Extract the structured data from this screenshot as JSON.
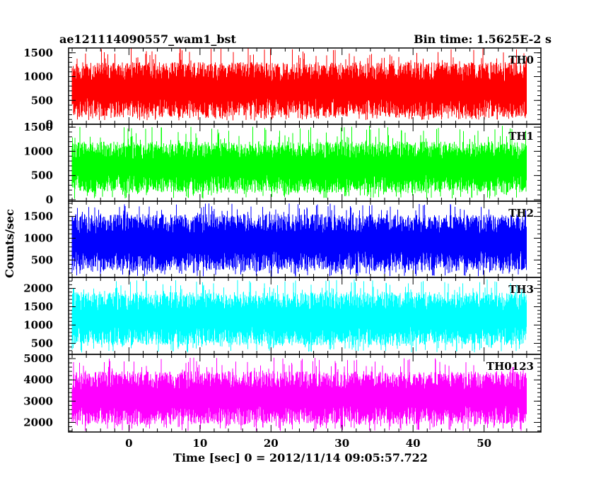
{
  "chart_data": {
    "type": "line",
    "header_left": "ae121114090557_wam1_bst",
    "header_right": "Bin time: 1.5625E-2 s",
    "xlabel": "Time [sec] 0 = 2012/11/14 09:05:57.722",
    "ylabel": "Counts/sec",
    "xlim": [
      -8.5,
      58
    ],
    "x_data_range": [
      -8.0,
      56.0
    ],
    "xticks": [
      0,
      10,
      20,
      30,
      40,
      50
    ],
    "xtick_labels": [
      "0",
      "10",
      "20",
      "30",
      "40",
      "50"
    ],
    "panels": [
      {
        "name": "TH0",
        "color": "#ff0000",
        "ylim": [
          0,
          1600
        ],
        "yticks": [
          500,
          1000,
          1500
        ],
        "ytick_labels": [
          "500",
          "1000",
          "1500"
        ],
        "baseline_label": "0",
        "typical_range": [
          150,
          1300
        ],
        "extreme_range": [
          80,
          1600
        ]
      },
      {
        "name": "TH1",
        "color": "#00ff00",
        "ylim": [
          -30,
          1560
        ],
        "yticks": [
          0,
          500,
          1000,
          1500
        ],
        "ytick_labels": [
          "0",
          "500",
          "1000",
          "1500"
        ],
        "typical_range": [
          150,
          1200
        ],
        "extreme_range": [
          20,
          1530
        ]
      },
      {
        "name": "TH2",
        "color": "#0000ff",
        "ylim": [
          100,
          1850
        ],
        "yticks": [
          500,
          1000,
          1500
        ],
        "ytick_labels": [
          "500",
          "1000",
          "1500"
        ],
        "typical_range": [
          250,
          1550
        ],
        "extreme_range": [
          120,
          1800
        ]
      },
      {
        "name": "TH3",
        "color": "#00ffff",
        "ylim": [
          200,
          2300
        ],
        "yticks": [
          500,
          1000,
          1500,
          2000
        ],
        "ytick_labels": [
          "500",
          "1000",
          "1500",
          "2000"
        ],
        "typical_range": [
          450,
          1900
        ],
        "extreme_range": [
          250,
          2250
        ]
      },
      {
        "name": "TH0123",
        "color": "#ff00ff",
        "ylim": [
          1550,
          5200
        ],
        "yticks": [
          2000,
          3000,
          4000,
          5000
        ],
        "ytick_labels": [
          "2000",
          "3000",
          "4000",
          "5000"
        ],
        "typical_range": [
          1900,
          4400
        ],
        "extreme_range": [
          1600,
          5050
        ]
      }
    ]
  }
}
